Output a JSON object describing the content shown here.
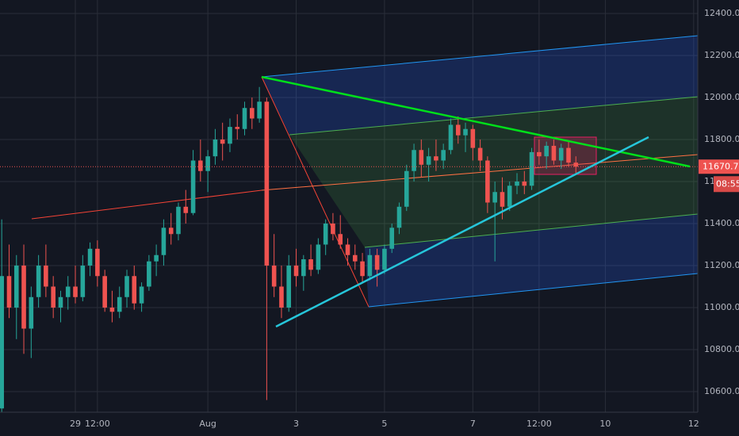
{
  "chart_data": {
    "type": "candlestick",
    "x": [
      27.333,
      27.5,
      27.667,
      27.833,
      28,
      28.167,
      28.333,
      28.5,
      28.667,
      28.833,
      29,
      29.167,
      29.333,
      29.5,
      29.667,
      29.833,
      30,
      30.167,
      30.333,
      30.5,
      30.667,
      30.833,
      31,
      31.167,
      31.333,
      31.5,
      31.667,
      31.833,
      32,
      32.167,
      32.333,
      32.5,
      32.667,
      32.833,
      33,
      33.167,
      33.333,
      33.5,
      33.667,
      33.833,
      34,
      34.167,
      34.333,
      34.5,
      34.667,
      34.833,
      35,
      35.167,
      35.333,
      35.5,
      35.667,
      35.833,
      36,
      36.167,
      36.333,
      36.5,
      36.667,
      36.833,
      37,
      37.167,
      37.333,
      37.5,
      37.667,
      37.833,
      38,
      38.167,
      38.333,
      38.5,
      38.667,
      38.833,
      39,
      39.167,
      39.333,
      39.5,
      39.667,
      39.833,
      40,
      40.167,
      40.333
    ],
    "open": [
      10520,
      11150,
      11000,
      11200,
      10900,
      11050,
      11200,
      11100,
      11000,
      11050,
      11100,
      11050,
      11200,
      11280,
      11150,
      11000,
      10980,
      11050,
      11150,
      11020,
      11100,
      11220,
      11250,
      11380,
      11350,
      11480,
      11450,
      11700,
      11650,
      11720,
      11800,
      11780,
      11860,
      11850,
      11950,
      11900,
      11980,
      11200,
      11100,
      11000,
      11200,
      11150,
      11230,
      11180,
      11300,
      11400,
      11350,
      11300,
      11250,
      11220,
      11150,
      11250,
      11180,
      11280,
      11380,
      11480,
      11650,
      11750,
      11680,
      11720,
      11700,
      11750,
      11870,
      11820,
      11850,
      11760,
      11700,
      11500,
      11550,
      11480,
      11580,
      11600,
      11580,
      11740,
      11720,
      11770,
      11700,
      11760,
      11690
    ],
    "high": [
      11420,
      11300,
      11250,
      11300,
      11100,
      11250,
      11300,
      11150,
      11080,
      11150,
      11200,
      11250,
      11310,
      11320,
      11180,
      11080,
      11100,
      11180,
      11200,
      11120,
      11250,
      11300,
      11420,
      11450,
      11500,
      11560,
      11750,
      11800,
      11750,
      11850,
      11880,
      11900,
      11920,
      11980,
      12000,
      12050,
      12000,
      11350,
      11200,
      11250,
      11280,
      11250,
      11300,
      11330,
      11420,
      11450,
      11440,
      11330,
      11300,
      11260,
      11280,
      11280,
      11300,
      11400,
      11500,
      11680,
      11780,
      11800,
      11760,
      11800,
      11780,
      11900,
      11910,
      11880,
      11870,
      11800,
      11720,
      11600,
      11620,
      11600,
      11640,
      11650,
      11760,
      11800,
      11790,
      11800,
      11780,
      11790,
      11720
    ],
    "low": [
      10500,
      10950,
      10850,
      10780,
      10760,
      11000,
      11050,
      10950,
      10930,
      10990,
      11020,
      11030,
      11150,
      11100,
      10980,
      10930,
      10950,
      11000,
      10990,
      10980,
      11080,
      11150,
      11200,
      11300,
      11320,
      11400,
      11440,
      11600,
      11550,
      11680,
      11700,
      11740,
      11800,
      11820,
      11850,
      11880,
      10560,
      11050,
      10950,
      10980,
      11100,
      11080,
      11150,
      11160,
      11250,
      11320,
      11280,
      11200,
      11180,
      11120,
      11130,
      11100,
      11160,
      11260,
      11350,
      11460,
      11600,
      11620,
      11600,
      11650,
      11660,
      11730,
      11780,
      11740,
      11700,
      11650,
      11450,
      11220,
      11420,
      11460,
      11540,
      11540,
      11560,
      11680,
      11660,
      11680,
      11660,
      11670,
      11640
    ],
    "close": [
      11150,
      11000,
      11200,
      10900,
      11050,
      11200,
      11100,
      11000,
      11050,
      11100,
      11050,
      11200,
      11280,
      11150,
      11000,
      10980,
      11050,
      11150,
      11020,
      11100,
      11220,
      11250,
      11380,
      11350,
      11480,
      11450,
      11700,
      11650,
      11720,
      11800,
      11780,
      11860,
      11850,
      11950,
      11900,
      11980,
      11200,
      11100,
      11000,
      11200,
      11150,
      11230,
      11180,
      11300,
      11400,
      11350,
      11300,
      11250,
      11220,
      11150,
      11250,
      11180,
      11280,
      11380,
      11480,
      11650,
      11750,
      11680,
      11720,
      11700,
      11750,
      11870,
      11820,
      11850,
      11760,
      11700,
      11500,
      11550,
      11480,
      11580,
      11600,
      11580,
      11740,
      11720,
      11770,
      11700,
      11760,
      11690,
      11670.7
    ],
    "up_color": "#26a69a",
    "down_color": "#ef5350",
    "xlim": [
      27.294,
      43.093
    ],
    "ylim": [
      10502,
      12464
    ],
    "xticks": [
      29,
      {
        "value": 29.5,
        "label": "12:00"
      },
      {
        "value": 32,
        "label": "Aug"
      },
      {
        "value": 34,
        "label": "3"
      },
      {
        "value": 36,
        "label": "5"
      },
      {
        "value": 38,
        "label": "7"
      },
      {
        "value": 39.5,
        "label": "12:00"
      },
      {
        "value": 41,
        "label": "10"
      },
      {
        "value": 43,
        "label": "12"
      }
    ],
    "yticks": [
      {
        "value": 10600,
        "label": "10600.00"
      },
      {
        "value": 10800,
        "label": "10800.00"
      },
      {
        "value": 11000,
        "label": "11000.00"
      },
      {
        "value": 11200,
        "label": "11200.00"
      },
      {
        "value": 11400,
        "label": "11400.00"
      },
      {
        "value": 11600,
        "label": "11600.00"
      },
      {
        "value": 11800,
        "label": "11800.00"
      },
      {
        "value": 12000,
        "label": "12000.00"
      },
      {
        "value": 12200,
        "label": "12200.00"
      },
      {
        "value": 12400,
        "label": "12400.00"
      }
    ],
    "grid": true,
    "last_price": {
      "value": 11670.7,
      "label": "11670.70"
    },
    "countdown": "08:55"
  }
}
